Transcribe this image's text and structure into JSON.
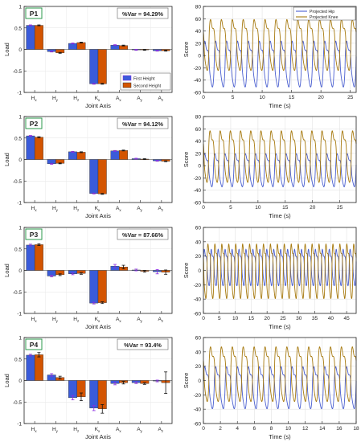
{
  "figure": {
    "legend_bar": [
      "First Height",
      "Second Height"
    ],
    "legend_line": [
      "Projected Hip",
      "Projected Knee"
    ],
    "bar_colors": [
      "#3a5bd9",
      "#d35400"
    ],
    "line_colors": [
      "#4a5fd0",
      "#a77a10"
    ]
  },
  "chart_data": [
    {
      "type": "bar",
      "panel_label": "P1",
      "var_text": "%Var = 94.29%",
      "xlabel": "Joint Axis",
      "ylabel": "Load",
      "ylim": [
        -1,
        1
      ],
      "yticks": [
        "-1",
        "-0.5",
        "0",
        "0.5",
        "1"
      ],
      "categories": [
        "Hx",
        "Hy",
        "Hz",
        "Kx",
        "Ax",
        "Ay",
        "Az"
      ],
      "series": [
        {
          "name": "First Height",
          "values": [
            0.56,
            -0.05,
            0.14,
            -0.8,
            0.1,
            -0.01,
            -0.03
          ],
          "errors": [
            0.01,
            0.01,
            0.01,
            0.01,
            0.01,
            0.01,
            0.01
          ]
        },
        {
          "name": "Second Height",
          "values": [
            0.56,
            -0.08,
            0.16,
            -0.8,
            0.09,
            -0.01,
            -0.03
          ],
          "errors": [
            0.01,
            0.01,
            0.01,
            0.01,
            0.01,
            0.01,
            0.01
          ]
        }
      ]
    },
    {
      "type": "bar",
      "panel_label": "P2",
      "var_text": "%Var = 94.12%",
      "xlabel": "Joint Axis",
      "ylabel": "Load",
      "ylim": [
        -1,
        1
      ],
      "yticks": [
        "-1",
        "-0.5",
        "0",
        "0.5",
        "1"
      ],
      "categories": [
        "Hx",
        "Hy",
        "Hz",
        "Kx",
        "Ax",
        "Ay",
        "Az"
      ],
      "series": [
        {
          "name": "First Height",
          "values": [
            0.55,
            -0.1,
            0.18,
            -0.79,
            0.2,
            0.02,
            -0.03
          ],
          "errors": [
            0.01,
            0.01,
            0.01,
            0.01,
            0.01,
            0.01,
            0.01
          ]
        },
        {
          "name": "Second Height",
          "values": [
            0.52,
            -0.09,
            0.17,
            -0.8,
            0.21,
            0.01,
            -0.04
          ],
          "errors": [
            0.01,
            0.01,
            0.01,
            0.01,
            0.01,
            0.01,
            0.01
          ]
        }
      ]
    },
    {
      "type": "bar",
      "panel_label": "P3",
      "var_text": "%Var = 87.66%",
      "xlabel": "Joint Axis",
      "ylabel": "Load",
      "ylim": [
        -1,
        1
      ],
      "yticks": [
        "-1",
        "-0.5",
        "0",
        "0.5",
        "1"
      ],
      "categories": [
        "Hx",
        "Hy",
        "Hz",
        "Kx",
        "Ax",
        "Ay",
        "Az"
      ],
      "series": [
        {
          "name": "First Height",
          "values": [
            0.59,
            -0.13,
            -0.08,
            -0.76,
            0.1,
            0.01,
            -0.03
          ],
          "errors": [
            0.02,
            0.02,
            0.02,
            0.02,
            0.04,
            0.02,
            0.05
          ]
        },
        {
          "name": "Second Height",
          "values": [
            0.6,
            -0.1,
            -0.07,
            -0.75,
            0.08,
            -0.02,
            -0.04
          ],
          "errors": [
            0.02,
            0.02,
            0.02,
            0.02,
            0.04,
            0.02,
            0.05
          ]
        }
      ]
    },
    {
      "type": "bar",
      "panel_label": "P4",
      "var_text": "%Var = 93.4%",
      "xlabel": "Joint Axis",
      "ylabel": "Load",
      "ylim": [
        -1,
        1
      ],
      "yticks": [
        "-1",
        "-0.5",
        "0",
        "0.5",
        "1"
      ],
      "categories": [
        "Hx",
        "Hy",
        "Hz",
        "Kx",
        "Ax",
        "Ay",
        "Az"
      ],
      "series": [
        {
          "name": "First Height",
          "values": [
            0.59,
            0.13,
            -0.4,
            -0.64,
            -0.07,
            -0.05,
            -0.01
          ],
          "errors": [
            0.02,
            0.03,
            0.05,
            0.06,
            0.03,
            0.02,
            0.02
          ]
        },
        {
          "name": "Second Height",
          "values": [
            0.6,
            0.07,
            -0.38,
            -0.66,
            -0.05,
            -0.07,
            -0.05
          ],
          "errors": [
            0.05,
            0.03,
            0.09,
            0.1,
            0.03,
            0.02,
            0.25
          ]
        }
      ]
    },
    {
      "type": "line",
      "xlabel": "Time (s)",
      "ylabel": "Score",
      "ylim": [
        -60,
        80
      ],
      "xlim": [
        0,
        26
      ],
      "xticks": [
        0,
        5,
        10,
        15,
        20,
        25
      ],
      "yticks": [
        -60,
        -40,
        -20,
        0,
        20,
        40,
        60,
        80
      ],
      "cycles": 14,
      "series": [
        {
          "name": "Projected Hip",
          "high": 27,
          "low": -52
        },
        {
          "name": "Projected Knee",
          "high": 62,
          "low": -25
        }
      ]
    },
    {
      "type": "line",
      "xlabel": "Time (s)",
      "ylabel": "Score",
      "ylim": [
        -60,
        80
      ],
      "xlim": [
        0,
        28
      ],
      "xticks": [
        0,
        5,
        10,
        15,
        20,
        25
      ],
      "yticks": [
        -60,
        -40,
        -20,
        0,
        20,
        40,
        60,
        80
      ],
      "cycles": 15,
      "series": [
        {
          "name": "Projected Hip",
          "high": 22,
          "low": -35
        },
        {
          "name": "Projected Knee",
          "high": 60,
          "low": -28
        }
      ]
    },
    {
      "type": "line",
      "xlabel": "Time (s)",
      "ylabel": "Score",
      "ylim": [
        -60,
        60
      ],
      "xlim": [
        0,
        48
      ],
      "xticks": [
        0,
        5,
        10,
        15,
        20,
        25,
        30,
        35,
        40,
        45
      ],
      "yticks": [
        -60,
        -40,
        -20,
        0,
        20,
        40,
        60
      ],
      "cycles": 22,
      "series": [
        {
          "name": "Projected Hip",
          "high": 32,
          "low": -22
        },
        {
          "name": "Projected Knee",
          "high": 40,
          "low": -40
        }
      ]
    },
    {
      "type": "line",
      "xlabel": "Time (s)",
      "ylabel": "Score",
      "ylim": [
        -60,
        60
      ],
      "xlim": [
        0,
        18
      ],
      "xticks": [
        0,
        2,
        4,
        6,
        8,
        10,
        12,
        14,
        16,
        18
      ],
      "yticks": [
        -60,
        -40,
        -20,
        0,
        20,
        40,
        60
      ],
      "cycles": 14,
      "series": [
        {
          "name": "Projected Hip",
          "high": 22,
          "low": -40
        },
        {
          "name": "Projected Knee",
          "high": 50,
          "low": -30
        }
      ]
    }
  ]
}
